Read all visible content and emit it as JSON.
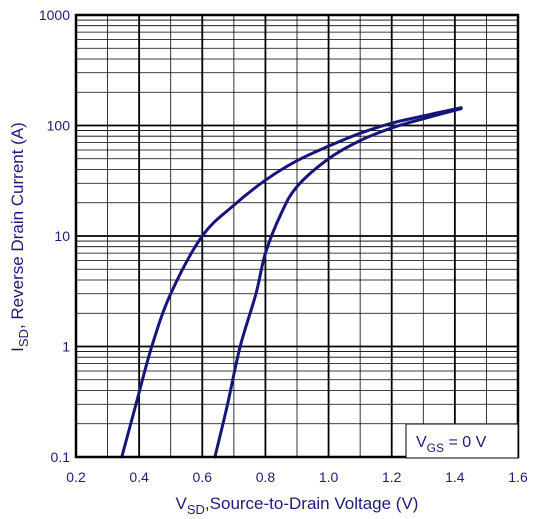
{
  "chart_data": {
    "type": "line",
    "title": "",
    "xlabel": {
      "main": "V",
      "sub": "SD",
      "rest": ",Source-to-Drain Voltage (V)"
    },
    "ylabel": {
      "main": "I",
      "sub": "SD",
      "rest": ", Reverse Drain Current (A)"
    },
    "xlim": [
      0.2,
      1.6
    ],
    "ylim": [
      0.1,
      1000
    ],
    "yscale": "log",
    "grid": true,
    "x_ticks": [
      "0.2",
      "0.4",
      "0.6",
      "0.8",
      "1.0",
      "1.2",
      "1.4",
      "1.6"
    ],
    "y_ticks": [
      "0.1",
      "1",
      "10",
      "100",
      "1000"
    ],
    "annotation": {
      "main": "V",
      "sub": "GS",
      "rest": " = 0 V"
    },
    "legend_position": "bottom-right",
    "line_color": "#16167a",
    "series": [
      {
        "points": [
          [
            0.345,
            0.1
          ],
          [
            0.39,
            0.3
          ],
          [
            0.44,
            1
          ],
          [
            0.5,
            3
          ],
          [
            0.6,
            10
          ],
          [
            0.7,
            19
          ],
          [
            0.8,
            32
          ],
          [
            0.9,
            48
          ],
          [
            1.0,
            65
          ],
          [
            1.1,
            85
          ],
          [
            1.2,
            105
          ],
          [
            1.3,
            122
          ],
          [
            1.42,
            145
          ]
        ]
      },
      {
        "points": [
          [
            0.64,
            0.1
          ],
          [
            0.68,
            0.3
          ],
          [
            0.72,
            1
          ],
          [
            0.77,
            3
          ],
          [
            0.8,
            7
          ],
          [
            0.85,
            16
          ],
          [
            0.9,
            28
          ],
          [
            1.0,
            50
          ],
          [
            1.1,
            73
          ],
          [
            1.2,
            95
          ],
          [
            1.3,
            115
          ],
          [
            1.42,
            142
          ]
        ]
      }
    ]
  }
}
